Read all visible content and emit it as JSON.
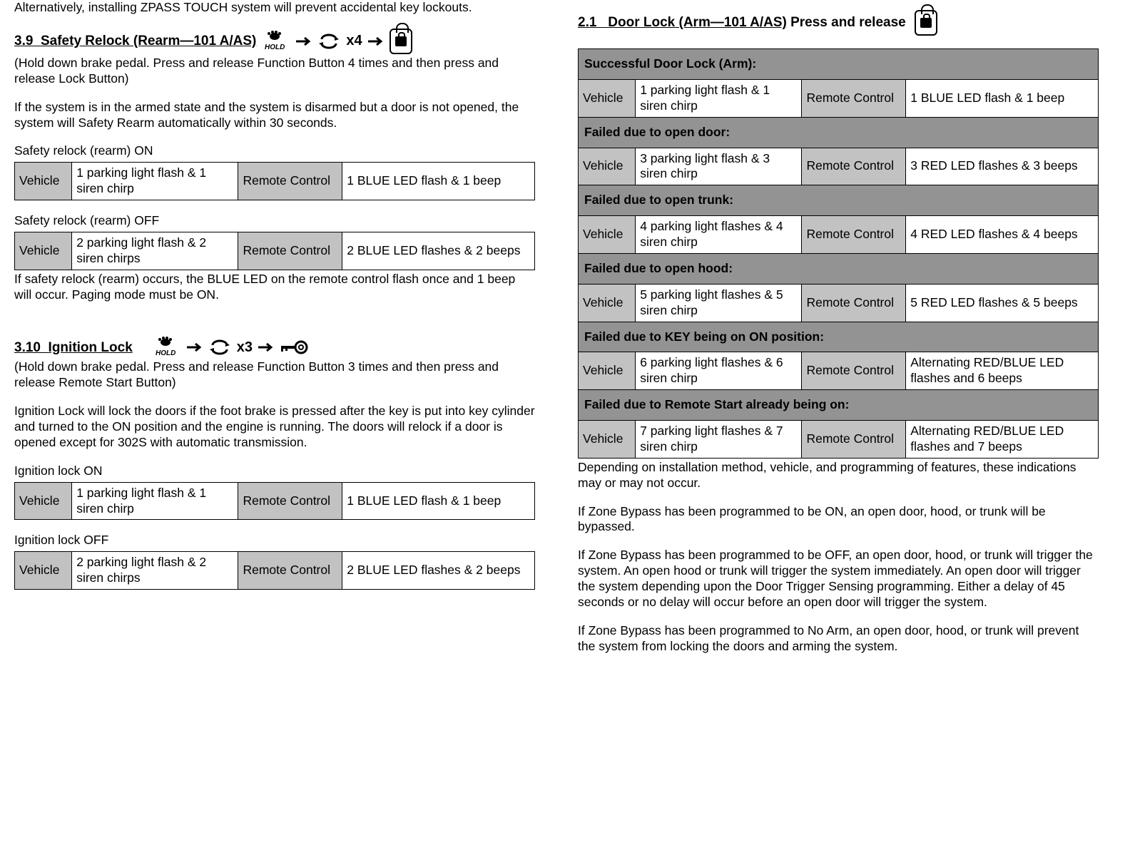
{
  "left": {
    "intro": "Alternatively, installing ZPASS TOUCH system will prevent accidental key lockouts.",
    "s39": {
      "num": "3.9",
      "title": "Safety Relock (Rearm—101 A/AS)",
      "sub": "(Hold down brake pedal.  Press and release Function Button 4 times and then press and release Lock Button)",
      "desc": "If the system is in the armed state and the system is disarmed but a door is not opened, the system will Safety Rearm automatically within 30 seconds.",
      "onLabel": "Safety relock (rearm) ON",
      "onRow": {
        "vehLbl": "Vehicle",
        "veh": "1 parking light flash & 1 siren chirp",
        "rcLbl": "Remote Control",
        "rc": "1 BLUE LED flash & 1 beep"
      },
      "offLabel": "Safety relock (rearm) OFF",
      "offRow": {
        "vehLbl": "Vehicle",
        "veh": "2 parking light flash & 2 siren chirps",
        "rcLbl": "Remote Control",
        "rc": "2 BLUE LED flashes & 2 beeps"
      },
      "note": "If safety relock (rearm) occurs, the BLUE LED on the remote control flash once and 1 beep will occur.  Paging mode must be ON.",
      "iconSeq": {
        "hold": "HOLD",
        "x": "x4"
      }
    },
    "s310": {
      "num": "3.10",
      "title": "Ignition Lock",
      "sub": "(Hold down brake pedal.  Press and release Function Button 3 times and then press and release Remote Start Button)",
      "desc": "Ignition Lock will lock the doors if the foot brake is pressed after the key is put into key cylinder and turned to the ON position and the engine is running.  The doors will relock if a door is opened except for 302S with automatic transmission.",
      "onLabel": "Ignition lock ON",
      "onRow": {
        "vehLbl": "Vehicle",
        "veh": "1 parking light flash & 1 siren chirp",
        "rcLbl": "Remote Control",
        "rc": "1 BLUE LED flash & 1 beep"
      },
      "offLabel": "Ignition lock OFF",
      "offRow": {
        "vehLbl": "Vehicle",
        "veh": "2 parking light flash & 2 siren chirps",
        "rcLbl": "Remote Control",
        "rc": "2 BLUE LED flashes & 2 beeps"
      },
      "iconSeq": {
        "hold": "HOLD",
        "x": "x3"
      }
    }
  },
  "right": {
    "s21": {
      "num": "2.1",
      "title": "Door Lock (Arm—101 A/AS)",
      "trail": " Press and release "
    },
    "table": {
      "rows": [
        {
          "type": "hdr",
          "text": "Successful Door Lock (Arm):"
        },
        {
          "type": "data",
          "vehLbl": "Vehicle",
          "veh": "1 parking light flash & 1 siren chirp",
          "rcLbl": "Remote Control",
          "rc": "1 BLUE LED flash & 1 beep"
        },
        {
          "type": "hdr",
          "text": "Failed due to open door:"
        },
        {
          "type": "data",
          "vehLbl": "Vehicle",
          "veh": "3 parking light flash & 3 siren chirp",
          "rcLbl": "Remote Control",
          "rc": "3 RED LED flashes & 3 beeps"
        },
        {
          "type": "hdr",
          "text": "Failed due to open trunk:"
        },
        {
          "type": "data",
          "vehLbl": "Vehicle",
          "veh": "4 parking light flashes & 4 siren chirp",
          "rcLbl": "Remote Control",
          "rc": "4 RED LED flashes & 4 beeps"
        },
        {
          "type": "hdr",
          "text": "Failed due to open hood:"
        },
        {
          "type": "data",
          "vehLbl": "Vehicle",
          "veh": "5 parking light flashes & 5 siren chirp",
          "rcLbl": "Remote Control",
          "rc": "5 RED LED flashes & 5 beeps"
        },
        {
          "type": "hdr",
          "text": "Failed due to KEY being on ON position:"
        },
        {
          "type": "data",
          "vehLbl": "Vehicle",
          "veh": "6 parking light flashes & 6 siren chirp",
          "rcLbl": "Remote Control",
          "rc": "Alternating RED/BLUE LED flashes and 6 beeps"
        },
        {
          "type": "hdr",
          "text": "Failed due to Remote Start already being on:"
        },
        {
          "type": "data",
          "vehLbl": "Vehicle",
          "veh": "7 parking light flashes & 7 siren chirp",
          "rcLbl": "Remote Control",
          "rc": "Alternating RED/BLUE LED flashes and 7 beeps"
        }
      ]
    },
    "p1": "Depending on installation method, vehicle, and programming of features, these indications may or may not occur.",
    "p2": "If Zone Bypass has been programmed to be ON, an open door, hood, or trunk will be bypassed.",
    "p3": "If Zone Bypass has been programmed to be OFF, an open door, hood, or trunk will trigger the system.  An open hood or trunk will trigger the system immediately.  An open door will trigger the system depending upon the Door Trigger Sensing programming.  Either a delay of 45 seconds or no delay will occur before an open door will trigger the system.",
    "p4": "If Zone Bypass has been programmed to No Arm, an open door, hood, or trunk will prevent the system from locking the doors and arming the system."
  }
}
